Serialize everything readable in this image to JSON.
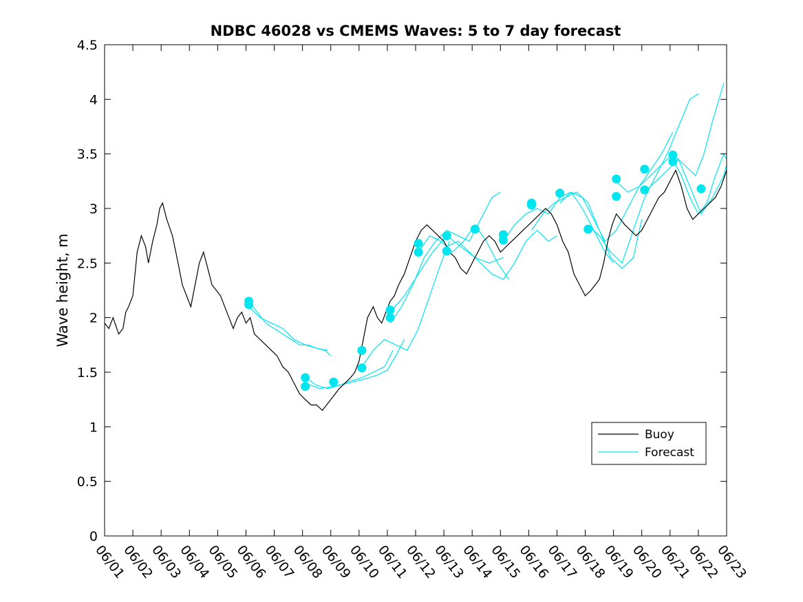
{
  "chart_data": {
    "type": "line",
    "title": "NDBC 46028 vs CMEMS Waves: 5 to 7 day forecast",
    "xlabel": "",
    "ylabel": "Wave height, m",
    "xlim": [
      "06/01",
      "06/23"
    ],
    "ylim": [
      0,
      4.5
    ],
    "grid": false,
    "legend_position": "lower-right",
    "x_ticks": [
      "06/01",
      "06/02",
      "06/03",
      "06/04",
      "06/05",
      "06/06",
      "06/07",
      "06/08",
      "06/09",
      "06/10",
      "06/11",
      "06/12",
      "06/13",
      "06/14",
      "06/15",
      "06/16",
      "06/17",
      "06/18",
      "06/19",
      "06/20",
      "06/21",
      "06/22",
      "06/23"
    ],
    "y_ticks": [
      "0",
      "0.5",
      "1",
      "1.5",
      "2",
      "2.5",
      "3",
      "3.5",
      "4",
      "4.5"
    ],
    "colors": {
      "buoy": "#000000",
      "forecast": "#00e5ee"
    },
    "series": [
      {
        "name": "Buoy",
        "x_days": [
          0,
          0.15,
          0.3,
          0.5,
          0.65,
          0.75,
          0.85,
          1.0,
          1.15,
          1.3,
          1.45,
          1.55,
          1.7,
          1.85,
          1.95,
          2.05,
          2.2,
          2.4,
          2.6,
          2.75,
          2.9,
          3.05,
          3.2,
          3.35,
          3.5,
          3.65,
          3.8,
          3.95,
          4.1,
          4.25,
          4.4,
          4.55,
          4.7,
          4.85,
          5.0,
          5.15,
          5.3,
          5.5,
          5.7,
          5.9,
          6.1,
          6.3,
          6.5,
          6.7,
          6.9,
          7.1,
          7.3,
          7.5,
          7.7,
          7.85,
          8.0,
          8.15,
          8.3,
          8.5,
          8.7,
          8.85,
          9.0,
          9.15,
          9.3,
          9.5,
          9.65,
          9.8,
          9.95,
          10.1,
          10.25,
          10.4,
          10.6,
          10.8,
          11.0,
          11.2,
          11.4,
          11.6,
          11.8,
          12.0,
          12.2,
          12.4,
          12.6,
          12.8,
          13.0,
          13.2,
          13.4,
          13.6,
          13.8,
          14.0,
          14.2,
          14.4,
          14.6,
          14.8,
          15.0,
          15.2,
          15.4,
          15.6,
          15.8,
          16.0,
          16.2,
          16.4,
          16.6,
          16.8,
          17.0,
          17.2,
          17.35,
          17.5,
          17.65,
          17.8,
          17.95,
          18.1,
          18.25,
          18.4,
          18.6,
          18.8,
          19.0,
          19.2,
          19.4,
          19.6,
          19.8,
          20.0,
          20.2,
          20.4,
          20.6,
          20.8,
          21.0,
          21.2,
          21.4,
          21.6,
          21.8,
          22.0
        ],
        "values": [
          1.95,
          1.9,
          2.0,
          1.85,
          1.9,
          2.05,
          2.1,
          2.2,
          2.6,
          2.75,
          2.65,
          2.5,
          2.7,
          2.85,
          3.0,
          3.05,
          2.9,
          2.75,
          2.5,
          2.3,
          2.2,
          2.1,
          2.3,
          2.5,
          2.6,
          2.45,
          2.3,
          2.25,
          2.2,
          2.1,
          2.0,
          1.9,
          2.0,
          2.05,
          1.95,
          2.0,
          1.85,
          1.8,
          1.75,
          1.7,
          1.65,
          1.55,
          1.5,
          1.4,
          1.3,
          1.25,
          1.2,
          1.2,
          1.15,
          1.2,
          1.25,
          1.3,
          1.35,
          1.4,
          1.45,
          1.5,
          1.6,
          1.8,
          2.0,
          2.1,
          2.0,
          1.95,
          2.05,
          2.15,
          2.2,
          2.3,
          2.4,
          2.55,
          2.7,
          2.8,
          2.85,
          2.8,
          2.75,
          2.7,
          2.6,
          2.55,
          2.45,
          2.4,
          2.5,
          2.6,
          2.7,
          2.75,
          2.7,
          2.6,
          2.65,
          2.7,
          2.75,
          2.8,
          2.85,
          2.9,
          2.95,
          3.0,
          2.95,
          2.85,
          2.7,
          2.6,
          2.4,
          2.3,
          2.2,
          2.25,
          2.3,
          2.35,
          2.5,
          2.7,
          2.85,
          2.95,
          2.9,
          2.85,
          2.8,
          2.75,
          2.8,
          2.9,
          3.0,
          3.1,
          3.15,
          3.25,
          3.35,
          3.2,
          3.0,
          2.9,
          2.95,
          3.0,
          3.05,
          3.1,
          3.2,
          3.35
        ]
      },
      {
        "name": "Forecast",
        "segments": [
          {
            "x_days": [
              5.1,
              5.4,
              5.7,
              6.0,
              6.3,
              6.6,
              6.9,
              7.2,
              7.5,
              7.8,
              8.0
            ],
            "values": [
              2.15,
              2.05,
              1.95,
              1.9,
              1.85,
              1.8,
              1.75,
              1.75,
              1.72,
              1.7,
              1.65
            ]
          },
          {
            "x_days": [
              5.1,
              5.5,
              5.9,
              6.3,
              6.7,
              7.1,
              7.5,
              7.9
            ],
            "values": [
              2.1,
              2.0,
              1.95,
              1.9,
              1.8,
              1.75,
              1.72,
              1.7
            ]
          },
          {
            "x_days": [
              7.1,
              7.5,
              7.9,
              8.3,
              8.7,
              9.1,
              9.5,
              9.9,
              10.2
            ],
            "values": [
              1.45,
              1.38,
              1.35,
              1.38,
              1.42,
              1.45,
              1.5,
              1.55,
              1.7
            ]
          },
          {
            "x_days": [
              7.1,
              7.6,
              8.1,
              8.6,
              9.1,
              9.6,
              10.0,
              10.3,
              10.6
            ],
            "values": [
              1.4,
              1.35,
              1.37,
              1.4,
              1.43,
              1.47,
              1.52,
              1.65,
              1.8
            ]
          },
          {
            "x_days": [
              9.1,
              9.5,
              9.9,
              10.3,
              10.7,
              11.1,
              11.5,
              11.9,
              12.2
            ],
            "values": [
              1.55,
              1.7,
              1.8,
              1.75,
              1.7,
              1.9,
              2.2,
              2.5,
              2.7
            ]
          },
          {
            "x_days": [
              10.1,
              10.5,
              10.9,
              11.3,
              11.7,
              12.1,
              12.5,
              12.9,
              13.3,
              13.7,
              14.0
            ],
            "values": [
              1.95,
              2.1,
              2.3,
              2.55,
              2.7,
              2.8,
              2.75,
              2.7,
              2.9,
              3.1,
              3.15
            ]
          },
          {
            "x_days": [
              10.1,
              10.6,
              11.1,
              11.6,
              12.1,
              12.6,
              13.1,
              13.6,
              14.1
            ],
            "values": [
              2.05,
              2.2,
              2.4,
              2.6,
              2.75,
              2.65,
              2.55,
              2.5,
              2.55
            ]
          },
          {
            "x_days": [
              11.1,
              11.5,
              11.9,
              12.3,
              12.7,
              13.1,
              13.5,
              13.9,
              14.3
            ],
            "values": [
              2.6,
              2.75,
              2.7,
              2.6,
              2.7,
              2.85,
              2.7,
              2.5,
              2.35
            ]
          },
          {
            "x_days": [
              12.1,
              12.5,
              12.9,
              13.3,
              13.7,
              14.1,
              14.5,
              14.9,
              15.3,
              15.7,
              16.0
            ],
            "values": [
              2.65,
              2.7,
              2.6,
              2.5,
              2.4,
              2.35,
              2.5,
              2.7,
              2.8,
              2.7,
              2.75
            ]
          },
          {
            "x_days": [
              14.1,
              14.5,
              14.9,
              15.3,
              15.7,
              16.1,
              16.5,
              16.9,
              17.3,
              17.7,
              18.0
            ],
            "values": [
              2.7,
              2.85,
              2.95,
              3.0,
              2.95,
              3.1,
              3.15,
              3.0,
              2.8,
              2.6,
              2.5
            ]
          },
          {
            "x_days": [
              15.1,
              15.5,
              15.9,
              16.3,
              16.7,
              17.1,
              17.5,
              17.9,
              18.3,
              18.7,
              19.0
            ],
            "values": [
              2.8,
              2.95,
              3.05,
              3.1,
              3.15,
              3.05,
              2.8,
              2.55,
              2.45,
              2.55,
              2.9
            ]
          },
          {
            "x_days": [
              16.1,
              16.5,
              16.9,
              17.3,
              17.7,
              18.1,
              18.5,
              18.9,
              19.3,
              19.7,
              20.1
            ],
            "values": [
              3.05,
              3.15,
              3.1,
              2.9,
              2.7,
              2.8,
              3.0,
              3.2,
              3.35,
              3.5,
              3.7
            ]
          },
          {
            "x_days": [
              17.1,
              17.5,
              17.9,
              18.3,
              18.7,
              19.1,
              19.5,
              19.9,
              20.3,
              20.7,
              21.0
            ],
            "values": [
              2.85,
              2.75,
              2.6,
              2.5,
              2.8,
              3.1,
              3.3,
              3.5,
              3.75,
              4.0,
              4.05
            ]
          },
          {
            "x_days": [
              18.1,
              18.5,
              18.9,
              19.3,
              19.7,
              20.1,
              20.5,
              20.9,
              21.2,
              21.5,
              21.9
            ],
            "values": [
              3.25,
              3.15,
              3.2,
              3.3,
              3.4,
              3.5,
              3.4,
              3.3,
              3.5,
              3.8,
              4.15
            ]
          },
          {
            "x_days": [
              19.1,
              19.5,
              19.9,
              20.3,
              20.7,
              21.1,
              21.5,
              21.9,
              22.0
            ],
            "values": [
              3.15,
              3.25,
              3.35,
              3.45,
              3.2,
              2.95,
              3.1,
              3.3,
              3.4
            ]
          },
          {
            "x_days": [
              20.1,
              20.4,
              20.7,
              21.0,
              21.3,
              21.6,
              21.9,
              22.0
            ],
            "values": [
              3.45,
              3.3,
              3.1,
              2.95,
              3.05,
              3.3,
              3.5,
              3.45
            ]
          }
        ],
        "markers": {
          "x_days": [
            5.1,
            5.1,
            7.1,
            7.1,
            8.1,
            9.1,
            9.1,
            10.1,
            10.1,
            11.1,
            11.1,
            12.1,
            12.1,
            13.1,
            14.1,
            14.1,
            15.1,
            15.1,
            16.1,
            17.1,
            18.1,
            18.1,
            19.1,
            19.1,
            20.1,
            20.1,
            21.1
          ],
          "values": [
            2.15,
            2.12,
            1.45,
            1.37,
            1.41,
            1.7,
            1.54,
            2.07,
            2.0,
            2.68,
            2.6,
            2.75,
            2.61,
            2.81,
            2.76,
            2.71,
            3.05,
            3.03,
            3.14,
            2.81,
            3.27,
            3.11,
            3.36,
            3.17,
            3.49,
            3.43,
            3.18
          ]
        }
      }
    ]
  }
}
